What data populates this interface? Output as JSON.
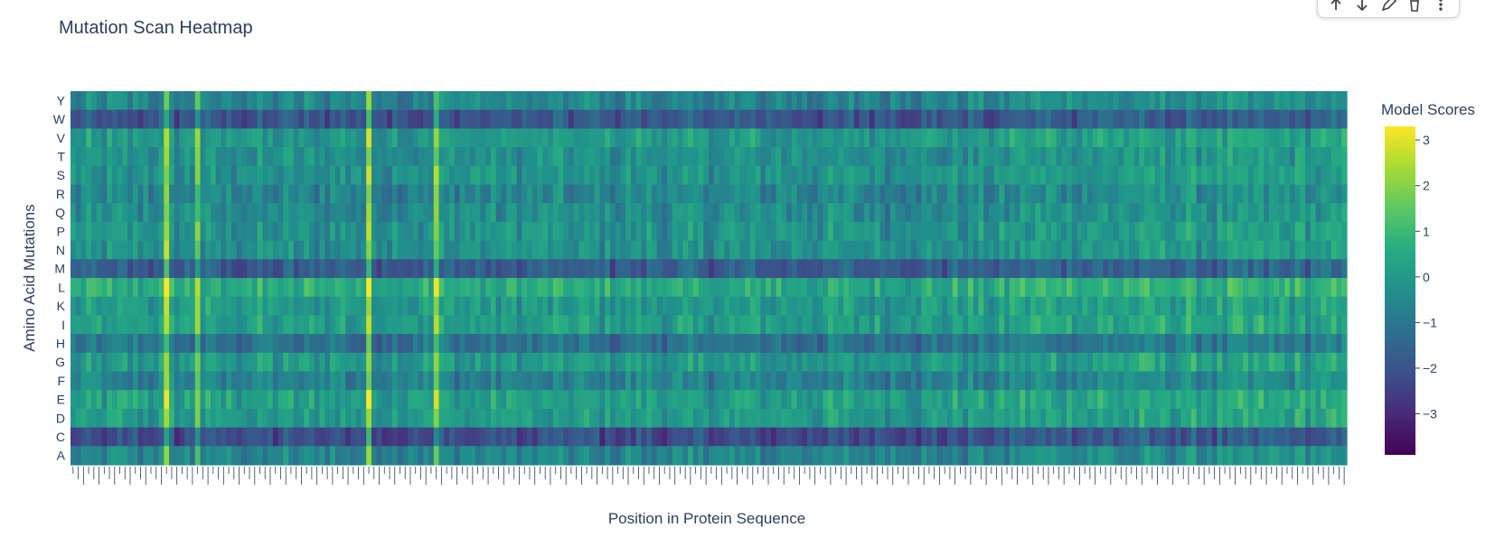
{
  "chart_data": {
    "type": "heatmap",
    "title": "Mutation Scan Heatmap",
    "xlabel": "Position in Protein Sequence",
    "ylabel": "Amino Acid Mutations",
    "colorbar_title": "Model Scores",
    "colorscale": "viridis",
    "zrange": [
      -3.9,
      3.3
    ],
    "colorbar_ticks": [
      3,
      2,
      1,
      0,
      -1,
      -2,
      -3
    ],
    "colorbar_tick_labels": [
      "3",
      "2",
      "1",
      "0",
      "−1",
      "−2",
      "−3"
    ],
    "y_categories": [
      "Y",
      "W",
      "V",
      "T",
      "S",
      "R",
      "Q",
      "P",
      "N",
      "M",
      "L",
      "K",
      "I",
      "H",
      "G",
      "F",
      "E",
      "D",
      "C",
      "A"
    ],
    "row_bias": {
      "Y": -0.6,
      "W": -2.0,
      "V": 0.0,
      "T": -0.3,
      "S": -0.2,
      "R": -0.6,
      "Q": -0.4,
      "P": -0.2,
      "N": -0.3,
      "M": -1.8,
      "L": 0.5,
      "K": 0.0,
      "I": 0.1,
      "H": -1.2,
      "G": 0.0,
      "F": -0.7,
      "E": 0.2,
      "D": 0.0,
      "C": -2.2,
      "A": -0.6
    },
    "n_positions": 246,
    "highlight_columns": [
      57,
      70,
      18,
      24
    ]
  },
  "toolbar": {
    "icons": [
      "arrow-up-icon",
      "arrow-down-icon",
      "pencil-icon",
      "trash-icon",
      "more-icon"
    ]
  },
  "colors": {
    "text": "#2a3f5f",
    "background": "#ffffff"
  }
}
